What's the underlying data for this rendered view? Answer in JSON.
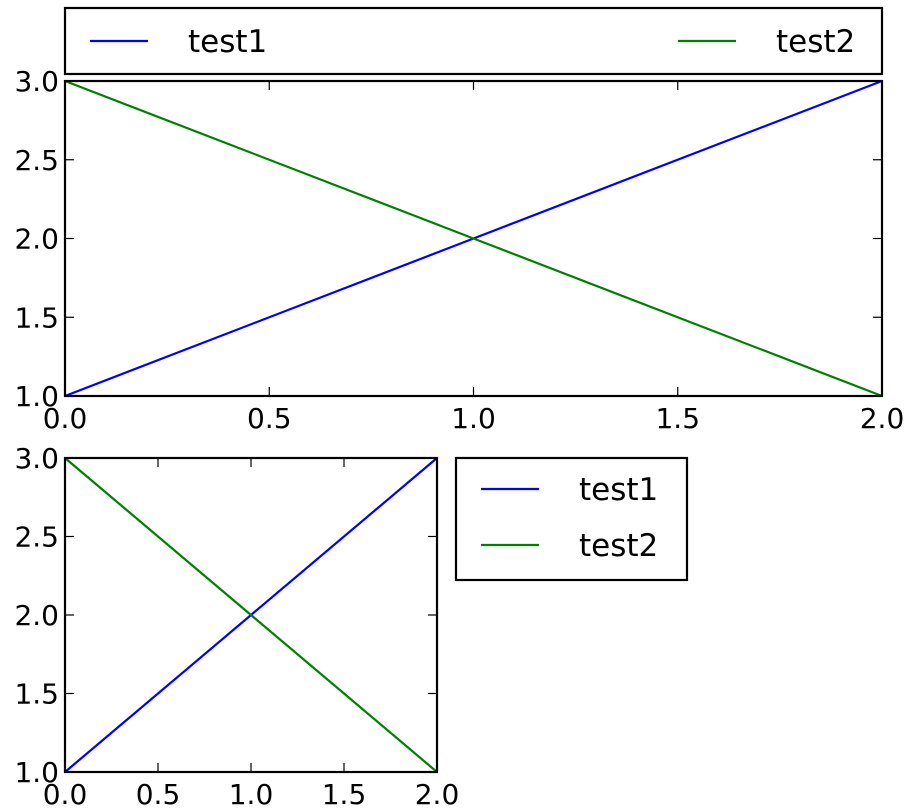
{
  "chart_data": [
    {
      "type": "line",
      "x": [
        0,
        1,
        2
      ],
      "series": [
        {
          "name": "test1",
          "color": "#0000ff",
          "values": [
            1,
            2,
            3
          ]
        },
        {
          "name": "test2",
          "color": "#008000",
          "values": [
            3,
            2,
            1
          ]
        }
      ],
      "xlim": [
        0,
        2
      ],
      "ylim": [
        1,
        3
      ],
      "xticks": [
        "0.0",
        "0.5",
        "1.0",
        "1.5",
        "2.0"
      ],
      "yticks": [
        "1.0",
        "1.5",
        "2.0",
        "2.5",
        "3.0"
      ],
      "grid": false,
      "legend": "above plot, expanded horizontally in two columns"
    },
    {
      "type": "line",
      "x": [
        0,
        1,
        2
      ],
      "series": [
        {
          "name": "test1",
          "color": "#0000ff",
          "values": [
            1,
            2,
            3
          ]
        },
        {
          "name": "test2",
          "color": "#008000",
          "values": [
            3,
            2,
            1
          ]
        }
      ],
      "xlim": [
        0,
        2
      ],
      "ylim": [
        1,
        3
      ],
      "xticks": [
        "0.0",
        "0.5",
        "1.0",
        "1.5",
        "2.0"
      ],
      "yticks": [
        "1.0",
        "1.5",
        "2.0",
        "2.5",
        "3.0"
      ],
      "grid": false,
      "legend": "outside right, upper"
    }
  ]
}
